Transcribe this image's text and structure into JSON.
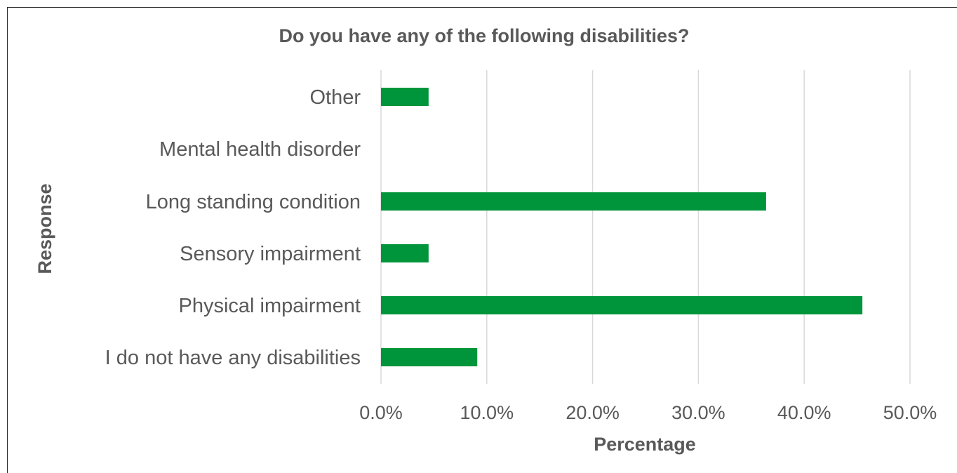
{
  "chart_data": {
    "type": "bar",
    "orientation": "horizontal",
    "title": "Do you have any of the following disabilities?",
    "xlabel": "Percentage",
    "ylabel": "Response",
    "categories": [
      "Other",
      "Mental health disorder",
      "Long standing condition",
      "Sensory impairment",
      "Physical impairment",
      "I do not have any disabilities"
    ],
    "values": [
      4.5,
      0.0,
      36.4,
      4.5,
      45.5,
      9.1
    ],
    "xlim": [
      0,
      50
    ],
    "tick_labels": [
      "0.0%",
      "10.0%",
      "20.0%",
      "30.0%",
      "40.0%",
      "50.0%"
    ],
    "grid": true,
    "legend": "none",
    "bar_color": "#00953a"
  }
}
